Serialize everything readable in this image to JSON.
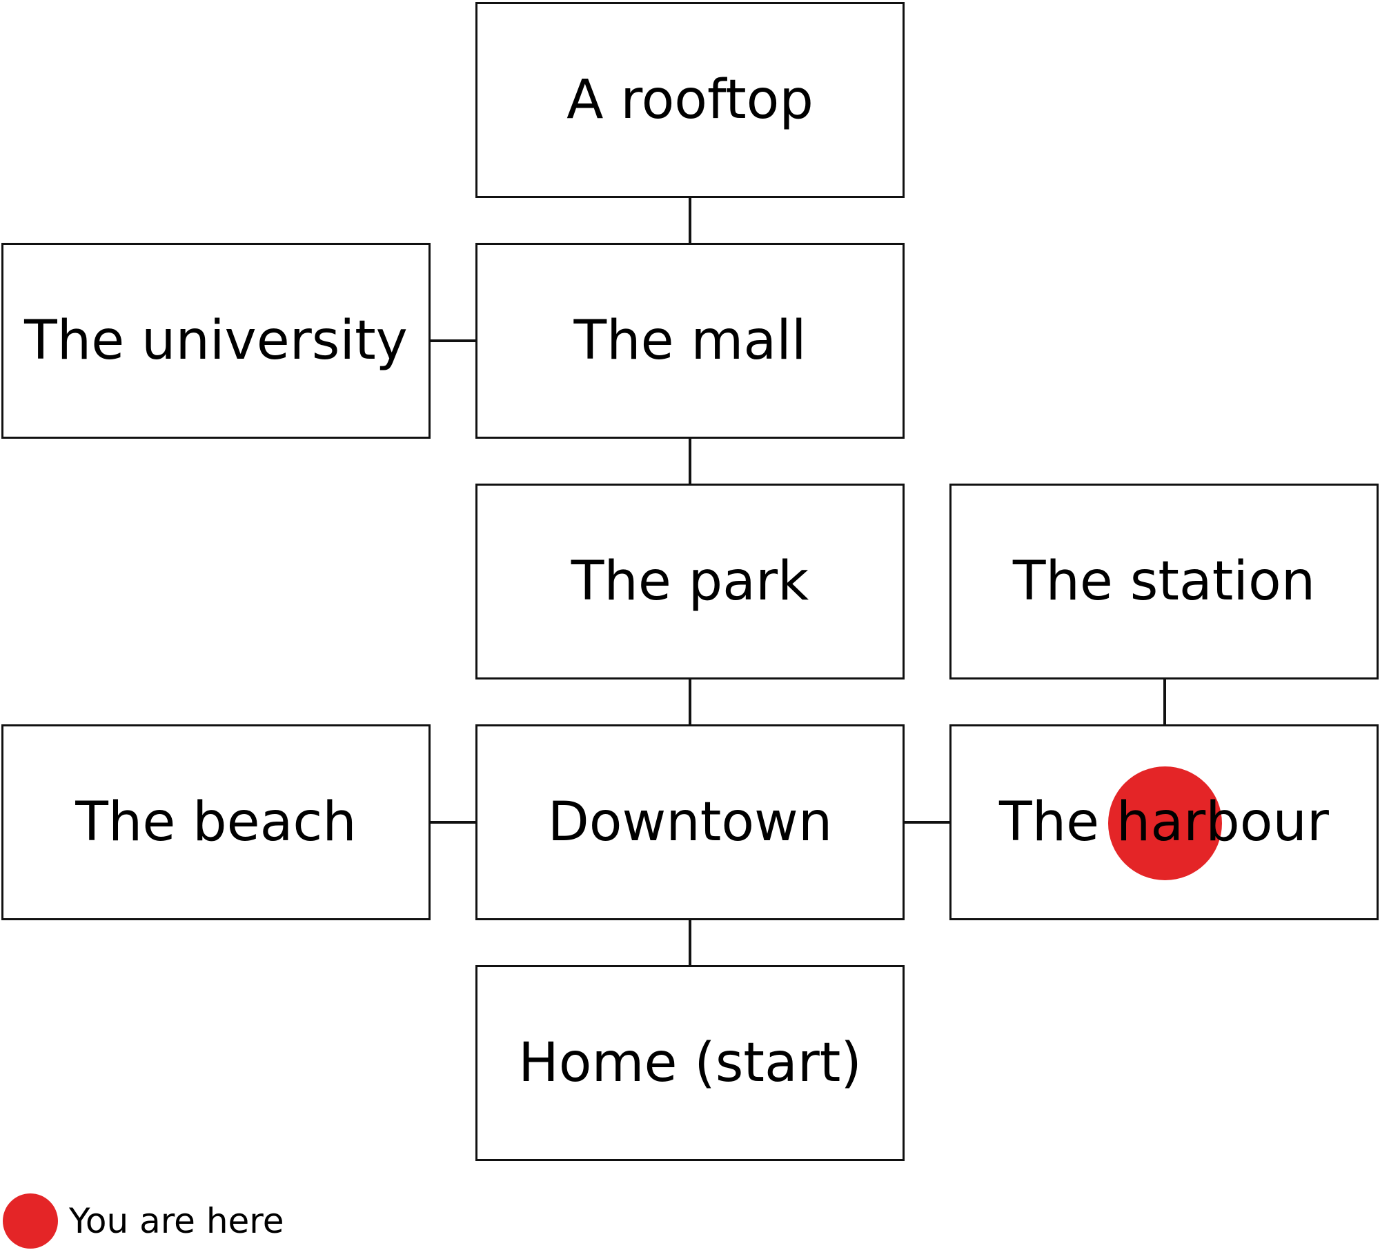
{
  "colors": {
    "marker": "#E42527",
    "box_border": "#111111",
    "connector": "#111111",
    "text": "#000000",
    "background": "#ffffff"
  },
  "nodes": {
    "rooftop": "A rooftop",
    "university": "The university",
    "mall": "The mall",
    "park": "The park",
    "station": "The station",
    "beach": "The beach",
    "downtown": "Downtown",
    "harbour": "The harbour",
    "home": "Home (start)"
  },
  "edges": [
    [
      "rooftop",
      "mall"
    ],
    [
      "university",
      "mall"
    ],
    [
      "mall",
      "park"
    ],
    [
      "park",
      "downtown"
    ],
    [
      "station",
      "harbour"
    ],
    [
      "beach",
      "downtown"
    ],
    [
      "downtown",
      "harbour"
    ],
    [
      "downtown",
      "home"
    ]
  ],
  "current_location": "harbour",
  "legend": {
    "marker_label": "You are here"
  }
}
